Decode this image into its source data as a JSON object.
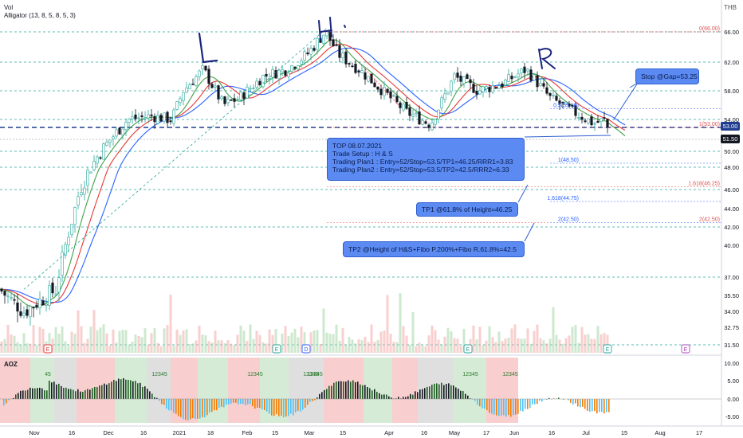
{
  "header": {
    "volume_label": "Vol",
    "indicator_label": "Alligator (13, 8, 5, 8, 5, 3)",
    "currency": "THB"
  },
  "chart_data": {
    "type": "candlestick",
    "y_ticks": [
      "66.00",
      "62.00",
      "58.00",
      "54.00",
      "50.00",
      "48.00",
      "46.00",
      "44.00",
      "42.00",
      "40.00",
      "37.00",
      "35.50",
      "34.00",
      "32.75",
      "31.50"
    ],
    "x_ticks": [
      "Nov",
      "16",
      "Dec",
      "16",
      "2021",
      "18",
      "Feb",
      "15",
      "Mar",
      "15",
      "Apr",
      "16",
      "May",
      "17",
      "Jun",
      "16",
      "Jul",
      "15",
      "Aug",
      "17"
    ],
    "price_badges": [
      {
        "label": "53.00",
        "value": 53.0,
        "color": "#1e3d8f"
      },
      {
        "label": "51.50",
        "value": 51.5,
        "color": "#131722"
      }
    ],
    "hand_letters": [
      "L",
      "H",
      "R"
    ],
    "fib_levels": [
      {
        "label": "0(66.00)",
        "value": 66.0,
        "color": "#e05050"
      },
      {
        "label": "0.5(55.50)",
        "value": 55.5,
        "color": "#2962ff"
      },
      {
        "label": "1(53.00)",
        "value": 53.0,
        "color": "#e05050"
      },
      {
        "label": "1(48.50)",
        "value": 48.5,
        "color": "#2962ff"
      },
      {
        "label": "1.618(46.25)",
        "value": 46.25,
        "color": "#e05050"
      },
      {
        "label": "1.618(44.75)",
        "value": 44.75,
        "color": "#2962ff"
      },
      {
        "label": "2(42.50)",
        "value": 42.5,
        "color": "#e05050"
      },
      {
        "label": "2(42.50)",
        "value": 42.5,
        "color": "#2962ff"
      }
    ],
    "callouts": {
      "stop": "Stop @Gap=53.25",
      "setup": [
        "TOP 08.07.2021",
        "Trade Setup : H & S",
        "Trading Plan1 : Entry=52/Stop=53.5/TP1=46.25/RRR1=3.83",
        "Trading Plan2 : Entry=52/Stop=53.5/TP2=42.5/RRR2=6.33"
      ],
      "tp1": "TP1 @61.8% of Height=46.25",
      "tp2": "TP2 @Height of H&S+Fibo P.200%+Fibo R.61.8%=42.5"
    },
    "indicator": {
      "name": "AOZ",
      "y_ticks": [
        "10.00",
        "5.00",
        "0.00",
        "-5.00"
      ],
      "wave_labels": [
        "12345",
        "12345",
        "12345",
        "12345",
        "12345",
        "12345",
        "45"
      ]
    },
    "event_markers": [
      "E",
      "E",
      "D",
      "E",
      "E",
      "E"
    ],
    "colors": {
      "up": "#26a69a",
      "down": "#131722",
      "jaw": "#2962ff",
      "teeth": "#e53935",
      "lips": "#43a047",
      "hline": "#26a69a",
      "neck": "#1e3d8f"
    }
  }
}
